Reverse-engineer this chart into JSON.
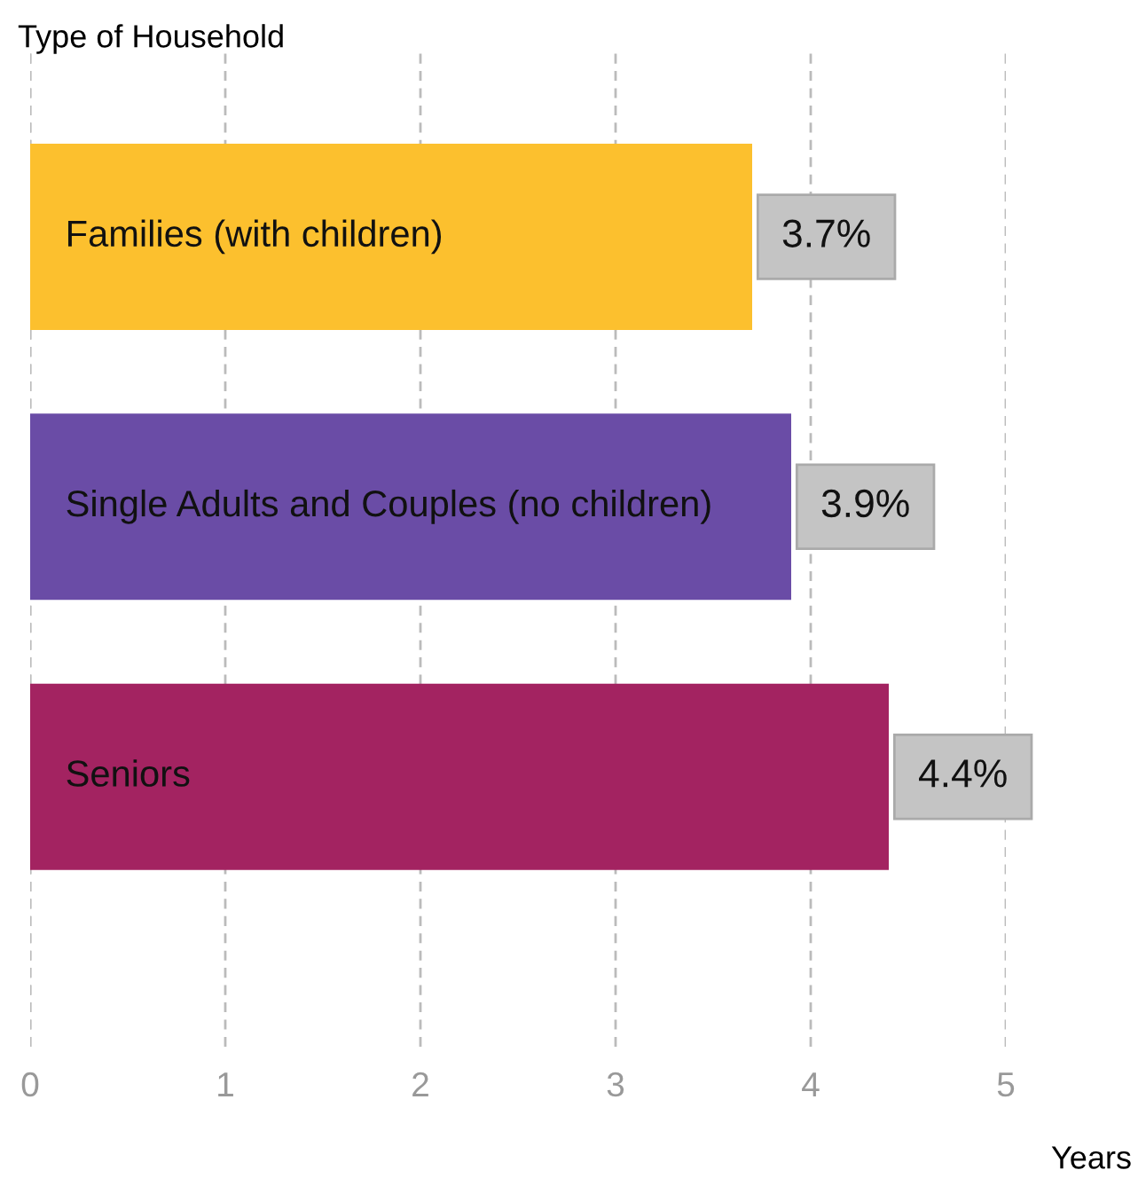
{
  "chart_data": {
    "type": "bar",
    "orientation": "horizontal",
    "ylabel": "Type of Household",
    "xlabel": "Years",
    "categories": [
      "Families (with children)",
      "Single Adults and Couples (no children)",
      "Seniors"
    ],
    "values": [
      3.7,
      3.9,
      4.4
    ],
    "colors": [
      "#fcc02e",
      "#6a4ca6",
      "#a32361"
    ],
    "value_labels": [
      "3.7%",
      "3.9%",
      "4.4%"
    ],
    "xlim": [
      0,
      5
    ],
    "xticks": [
      0,
      1,
      2,
      3,
      4,
      5
    ],
    "grid": "x"
  }
}
